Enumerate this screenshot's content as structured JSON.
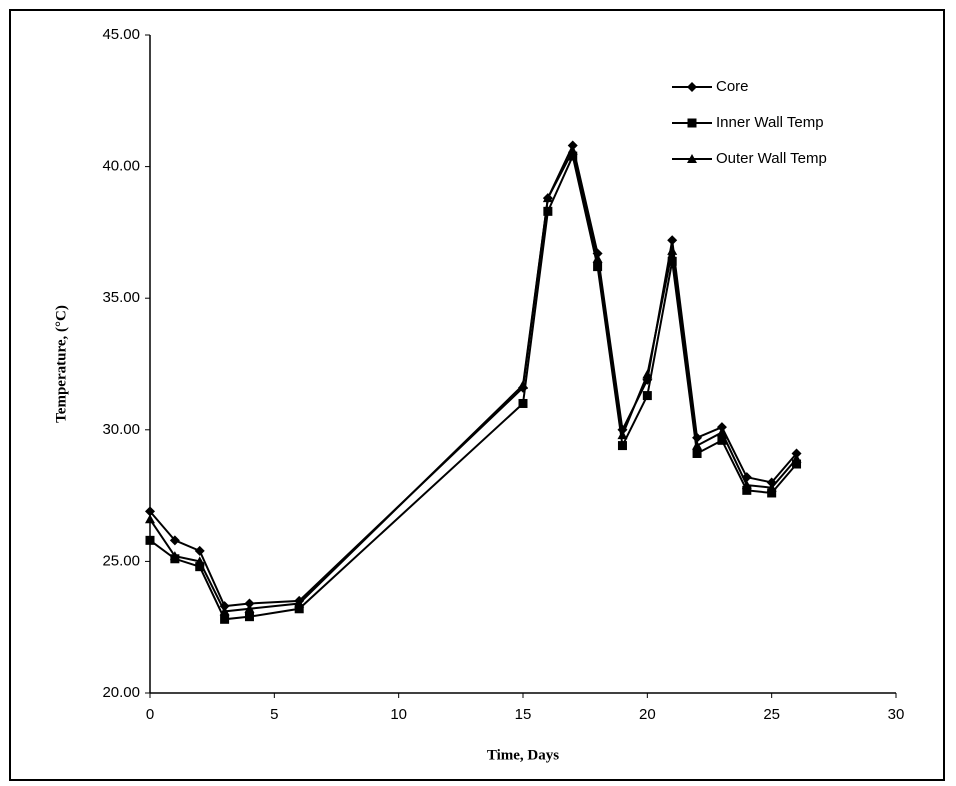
{
  "chart_data": {
    "type": "line",
    "x_label": "Time, Days",
    "y_label": "Temperature, (°C)",
    "x": [
      0,
      1,
      2,
      3,
      4,
      6,
      15,
      16,
      17,
      18,
      19,
      20,
      21,
      22,
      23,
      24,
      25,
      26
    ],
    "series": [
      {
        "name": "Core",
        "color": "#000000",
        "marker": "diamond",
        "values": [
          26.9,
          25.8,
          25.4,
          23.3,
          23.4,
          23.5,
          31.6,
          38.8,
          40.8,
          36.7,
          30.0,
          31.9,
          37.2,
          29.7,
          30.1,
          28.2,
          28.0,
          29.1
        ]
      },
      {
        "name": "Inner Wall Temp",
        "color": "#000000",
        "marker": "square",
        "values": [
          25.8,
          25.1,
          24.8,
          22.8,
          22.9,
          23.2,
          31.0,
          38.3,
          40.4,
          36.2,
          29.4,
          31.3,
          36.4,
          29.1,
          29.6,
          27.7,
          27.6,
          28.7
        ]
      },
      {
        "name": "Outer Wall Temp",
        "color": "#000000",
        "marker": "triangle",
        "values": [
          26.6,
          25.2,
          25.0,
          23.1,
          23.2,
          23.4,
          31.7,
          38.8,
          40.6,
          36.5,
          29.8,
          32.1,
          36.8,
          29.4,
          29.9,
          27.9,
          27.8,
          28.9
        ]
      }
    ],
    "xlim": [
      0,
      30
    ],
    "xticks": [
      0,
      5,
      10,
      15,
      20,
      25,
      30
    ],
    "ylim": [
      20,
      45
    ],
    "yticks": [
      {
        "value": 20,
        "label": "20.00"
      },
      {
        "value": 25,
        "label": "25.00"
      },
      {
        "value": 30,
        "label": "30.00"
      },
      {
        "value": 35,
        "label": "35.00"
      },
      {
        "value": 40,
        "label": "40.00"
      },
      {
        "value": 45,
        "label": "45.00"
      }
    ],
    "grid": false,
    "legend": "upper right"
  }
}
